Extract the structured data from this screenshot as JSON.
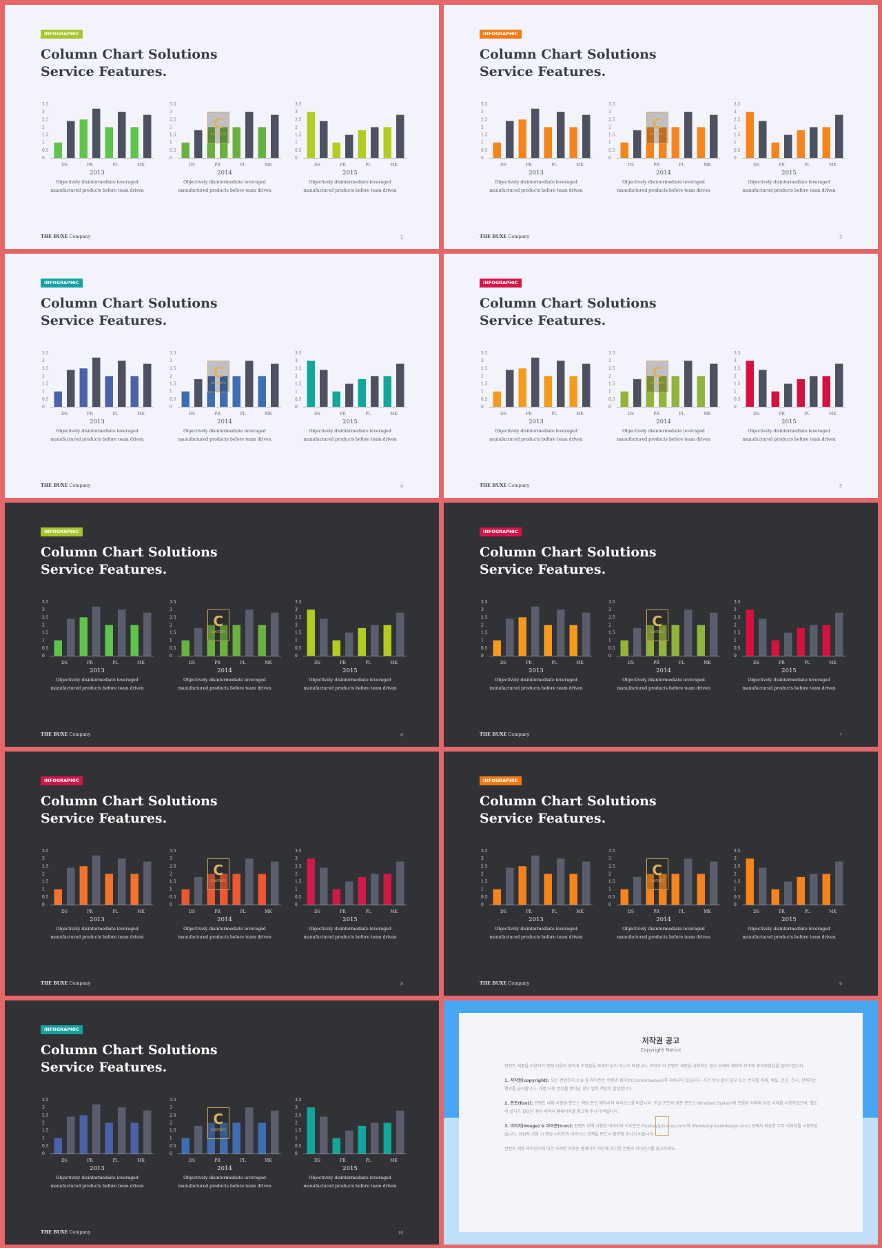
{
  "slides": [
    {
      "page": "2",
      "theme": "light",
      "badge": "INFOGRAPHIC",
      "badge_color": "#a8c62a",
      "charts": [
        {
          "year": "2013",
          "accent": "#5cc54a",
          "alt": "#4d5160"
        },
        {
          "year": "2014",
          "accent": "#6bb13e",
          "alt": "#4d5160"
        },
        {
          "year": "2015",
          "accent": "#b4cc1f",
          "alt": "#4d5160"
        }
      ]
    },
    {
      "page": "3",
      "theme": "light",
      "badge": "INFOGRAPHIC",
      "badge_color": "#f57a12",
      "charts": [
        {
          "year": "2013",
          "accent": "#f6841b",
          "alt": "#4d5160"
        },
        {
          "year": "2014",
          "accent": "#f6841b",
          "alt": "#4d5160"
        },
        {
          "year": "2015",
          "accent": "#f6841b",
          "alt": "#4d5160"
        }
      ]
    },
    {
      "page": "4",
      "theme": "light",
      "badge": "INFOGRAPHIC",
      "badge_color": "#13a3a0",
      "charts": [
        {
          "year": "2013",
          "accent": "#4b62a8",
          "alt": "#4d5160"
        },
        {
          "year": "2014",
          "accent": "#3f6eb0",
          "alt": "#4d5160"
        },
        {
          "year": "2015",
          "accent": "#11a79c",
          "alt": "#4d5160"
        }
      ]
    },
    {
      "page": "5",
      "theme": "light",
      "badge": "INFOGRAPHIC",
      "badge_color": "#d51548",
      "charts": [
        {
          "year": "2013",
          "accent": "#f59a1c",
          "alt": "#4d5160"
        },
        {
          "year": "2014",
          "accent": "#93b43a",
          "alt": "#4d5160"
        },
        {
          "year": "2015",
          "accent": "#d5123f",
          "alt": "#4d5160"
        }
      ]
    },
    {
      "page": "6",
      "theme": "dark",
      "badge": "INFOGRAPHIC",
      "badge_color": "#a8c62a",
      "charts": [
        {
          "year": "2013",
          "accent": "#5cc54a",
          "alt": "#5a5e6c"
        },
        {
          "year": "2014",
          "accent": "#6bb13e",
          "alt": "#5a5e6c"
        },
        {
          "year": "2015",
          "accent": "#b4cc1f",
          "alt": "#5a5e6c"
        }
      ]
    },
    {
      "page": "7",
      "theme": "dark",
      "badge": "INFOGRAPHIC",
      "badge_color": "#d51548",
      "charts": [
        {
          "year": "2013",
          "accent": "#f59a1c",
          "alt": "#5a5e6c"
        },
        {
          "year": "2014",
          "accent": "#93b43a",
          "alt": "#5a5e6c"
        },
        {
          "year": "2015",
          "accent": "#d5123f",
          "alt": "#5a5e6c"
        }
      ]
    },
    {
      "page": "8",
      "theme": "dark",
      "badge": "INFOGRAPHIC",
      "badge_color": "#d51548",
      "charts": [
        {
          "year": "2013",
          "accent": "#f5722b",
          "alt": "#5a5e6c"
        },
        {
          "year": "2014",
          "accent": "#ee5730",
          "alt": "#5a5e6c"
        },
        {
          "year": "2015",
          "accent": "#d11946",
          "alt": "#5a5e6c"
        }
      ]
    },
    {
      "page": "9",
      "theme": "dark",
      "badge": "INFOGRAPHIC",
      "badge_color": "#f57a12",
      "charts": [
        {
          "year": "2013",
          "accent": "#f6841b",
          "alt": "#5a5e6c"
        },
        {
          "year": "2014",
          "accent": "#f6841b",
          "alt": "#5a5e6c"
        },
        {
          "year": "2015",
          "accent": "#f6841b",
          "alt": "#5a5e6c"
        }
      ]
    },
    {
      "page": "10",
      "theme": "dark",
      "badge": "INFOGRAPHIC",
      "badge_color": "#13a3a0",
      "charts": [
        {
          "year": "2013",
          "accent": "#4b62a8",
          "alt": "#5a5e6c"
        },
        {
          "year": "2014",
          "accent": "#3f6eb0",
          "alt": "#5a5e6c"
        },
        {
          "year": "2015",
          "accent": "#11a79c",
          "alt": "#5a5e6c"
        }
      ]
    }
  ],
  "common": {
    "title_line1": "Column Chart Solutions",
    "title_line2": "Service Features.",
    "desc_line1": "Objectively disintermediate leveraged",
    "desc_line2": "manufactured products before team driven",
    "footer_brand": "THE BUXE",
    "footer_company": "Company",
    "watermark_letter": "C",
    "watermark_text": "CONTENTS"
  },
  "chart_data": [
    {
      "type": "bar",
      "year": "2013",
      "categories": [
        "DS",
        "",
        "PR",
        "",
        "PL",
        "",
        "MK",
        ""
      ],
      "values": [
        1,
        2.4,
        2.5,
        3.2,
        2,
        3,
        2,
        2.8
      ],
      "ylim": [
        0,
        3.5
      ],
      "yticks": [
        "0",
        "0.5",
        "1",
        "1.5",
        "2",
        "2.5",
        "3",
        "3.5"
      ],
      "pattern": [
        "accent",
        "alt",
        "accent",
        "alt",
        "accent",
        "alt",
        "accent",
        "alt"
      ]
    },
    {
      "type": "bar",
      "year": "2014",
      "categories": [
        "DS",
        "",
        "PR",
        "",
        "PL",
        "",
        "MK",
        ""
      ],
      "values": [
        1,
        1.8,
        2,
        2,
        2,
        3,
        2,
        2.8
      ],
      "ylim": [
        0,
        3.5
      ],
      "yticks": [
        "0",
        "0.5",
        "1",
        "1.5",
        "2",
        "2.5",
        "3",
        "3.5"
      ],
      "pattern": [
        "accent",
        "alt",
        "accent",
        "accent",
        "accent",
        "alt",
        "accent",
        "alt"
      ]
    },
    {
      "type": "bar",
      "year": "2015",
      "categories": [
        "DS",
        "",
        "PR",
        "",
        "PL",
        "",
        "MK",
        ""
      ],
      "values": [
        3,
        2.4,
        1,
        1.5,
        1.8,
        2,
        2,
        2.8
      ],
      "ylim": [
        0,
        3.5
      ],
      "yticks": [
        "0",
        "0.5",
        "1",
        "1.5",
        "2",
        "2.5",
        "3",
        "3.5"
      ],
      "pattern": [
        "accent",
        "alt",
        "accent",
        "alt",
        "accent",
        "alt",
        "accent",
        "alt"
      ]
    }
  ],
  "notice": {
    "title": "저작권 공고",
    "subtitle": "Copyright Notice",
    "intro": "컨텐츠 세종을 이용하기 전에 다음의 원칙과 조항들을 자세히 읽어 주시기 바랍니다. 귀하가 이 컨텐츠 세종을 사용하는 경우 아래의 계약과 보조에 동의하였음을 알려드립니다.",
    "sections": [
      {
        "head": "1. 저작권(copyright):",
        "text": "모든 컨텐츠의 소유 및 저작권은 컨텐츠 웨이브(Contentswave)에 귀속되어 있습니다. 사전 승낙 없이 일부 또는 전부를 복제, 배포, 전송, 전시, 판매하는 행위를 금지합니다. 개별 사용 범위를 벗어날 경우 법적 책임이 발생합니다."
      },
      {
        "head": "2. 폰트(font):",
        "text": "컨텐츠 내에 사용된 폰트는 해당 폰트 제작사의 라이선스를 따릅니다. 한글 폰트와 영문 폰트는 Windows System에 포함된 서체와 무료 서체를 사용하였으며, 별도의 설치가 필요한 경우 제작사 홈페이지를 참고해 주시기 바랍니다."
      },
      {
        "head": "3. 이미지(image) & 아이콘(icon):",
        "text": "컨텐츠 내에 사용된 이미지와 아이콘은 Pixabay(pixabay.com)와 Webdesign(webdesign.com) 등에서 제공한 무료 이미지를 사용하였습니다. 상업적 사용 시 해당 사이트의 라이선스 정책을 반드시 확인해 주시기 바랍니다."
      }
    ],
    "outro": "컨텐츠 세종 라이선스에 대한 자세한 사항은 홈페이지 하단에 위치한 컨텐츠 라이선스를 참고하세요."
  }
}
